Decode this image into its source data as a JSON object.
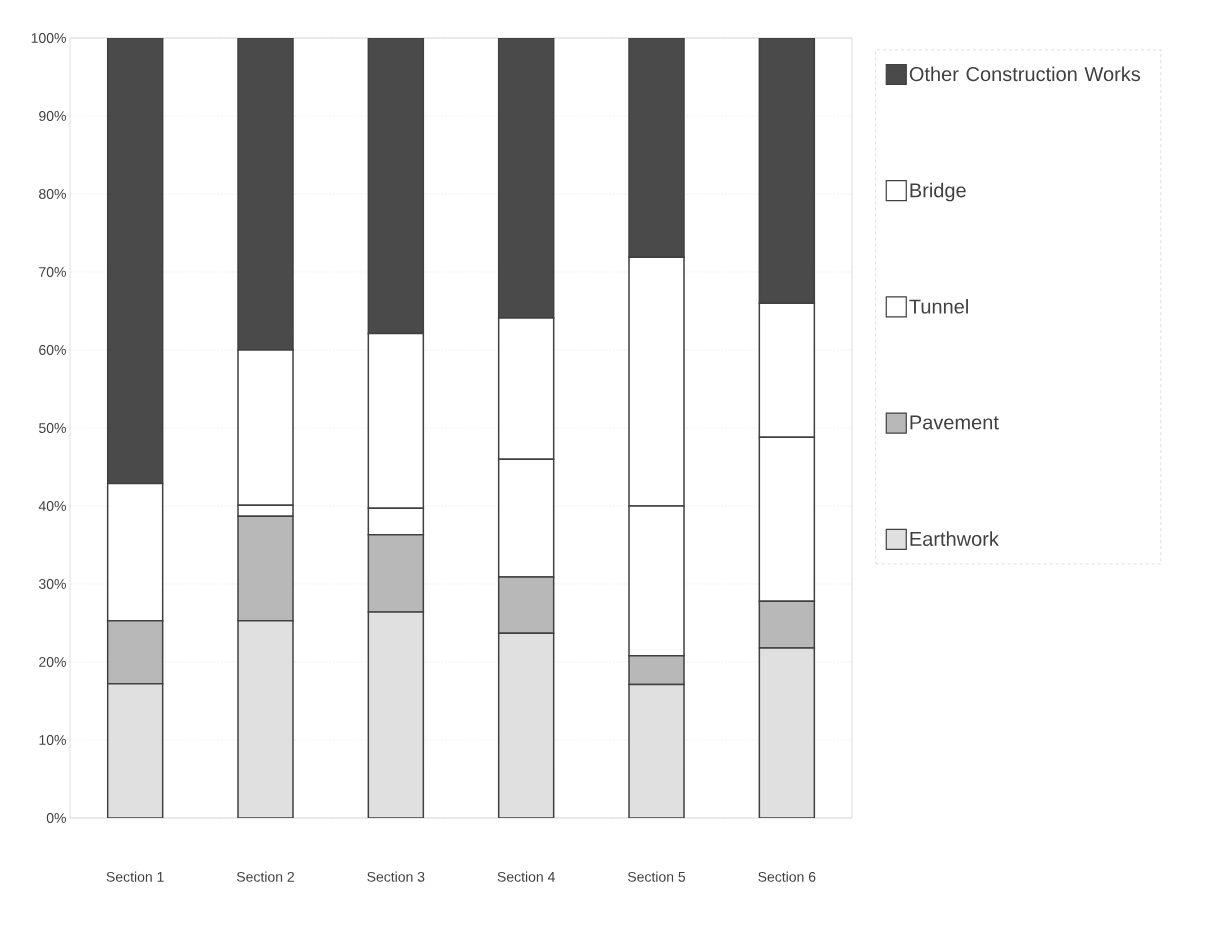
{
  "chart_data": {
    "type": "bar",
    "stacked": true,
    "categories": [
      "Section 1",
      "Section 2",
      "Section 3",
      "Section 4",
      "Section 5",
      "Section 6"
    ],
    "series": [
      {
        "name": "Earthwork",
        "color": "#e0e0e0",
        "values": [
          17.2,
          25.3,
          26.4,
          23.7,
          17.1,
          21.8
        ]
      },
      {
        "name": "Pavement",
        "color": "#b8b8b8",
        "values": [
          8.1,
          13.4,
          9.9,
          7.2,
          3.7,
          6.0
        ]
      },
      {
        "name": "Tunnel",
        "color": "#ffffff",
        "values": [
          17.6,
          1.4,
          3.4,
          15.1,
          19.2,
          21.0
        ]
      },
      {
        "name": "Bridge",
        "color": "#ffffff",
        "values": [
          0,
          19.9,
          22.4,
          18.1,
          31.9,
          17.2
        ]
      },
      {
        "name": "Other Construction Works",
        "color": "#4a4a4a",
        "values": [
          57.1,
          40.0,
          37.9,
          35.9,
          28.1,
          34.0
        ]
      }
    ],
    "ylim": [
      0,
      100
    ],
    "yticks": [
      {
        "value": 0,
        "label": "0%"
      },
      {
        "value": 10,
        "label": "10%"
      },
      {
        "value": 20,
        "label": "20%"
      },
      {
        "value": 30,
        "label": "30%"
      },
      {
        "value": 40,
        "label": "40%"
      },
      {
        "value": 50,
        "label": "50%"
      },
      {
        "value": 60,
        "label": "60%"
      },
      {
        "value": 70,
        "label": "70%"
      },
      {
        "value": 80,
        "label": "80%"
      },
      {
        "value": 90,
        "label": "90%"
      },
      {
        "value": 100,
        "label": "100%"
      }
    ],
    "grid": "y",
    "legend": "right"
  }
}
